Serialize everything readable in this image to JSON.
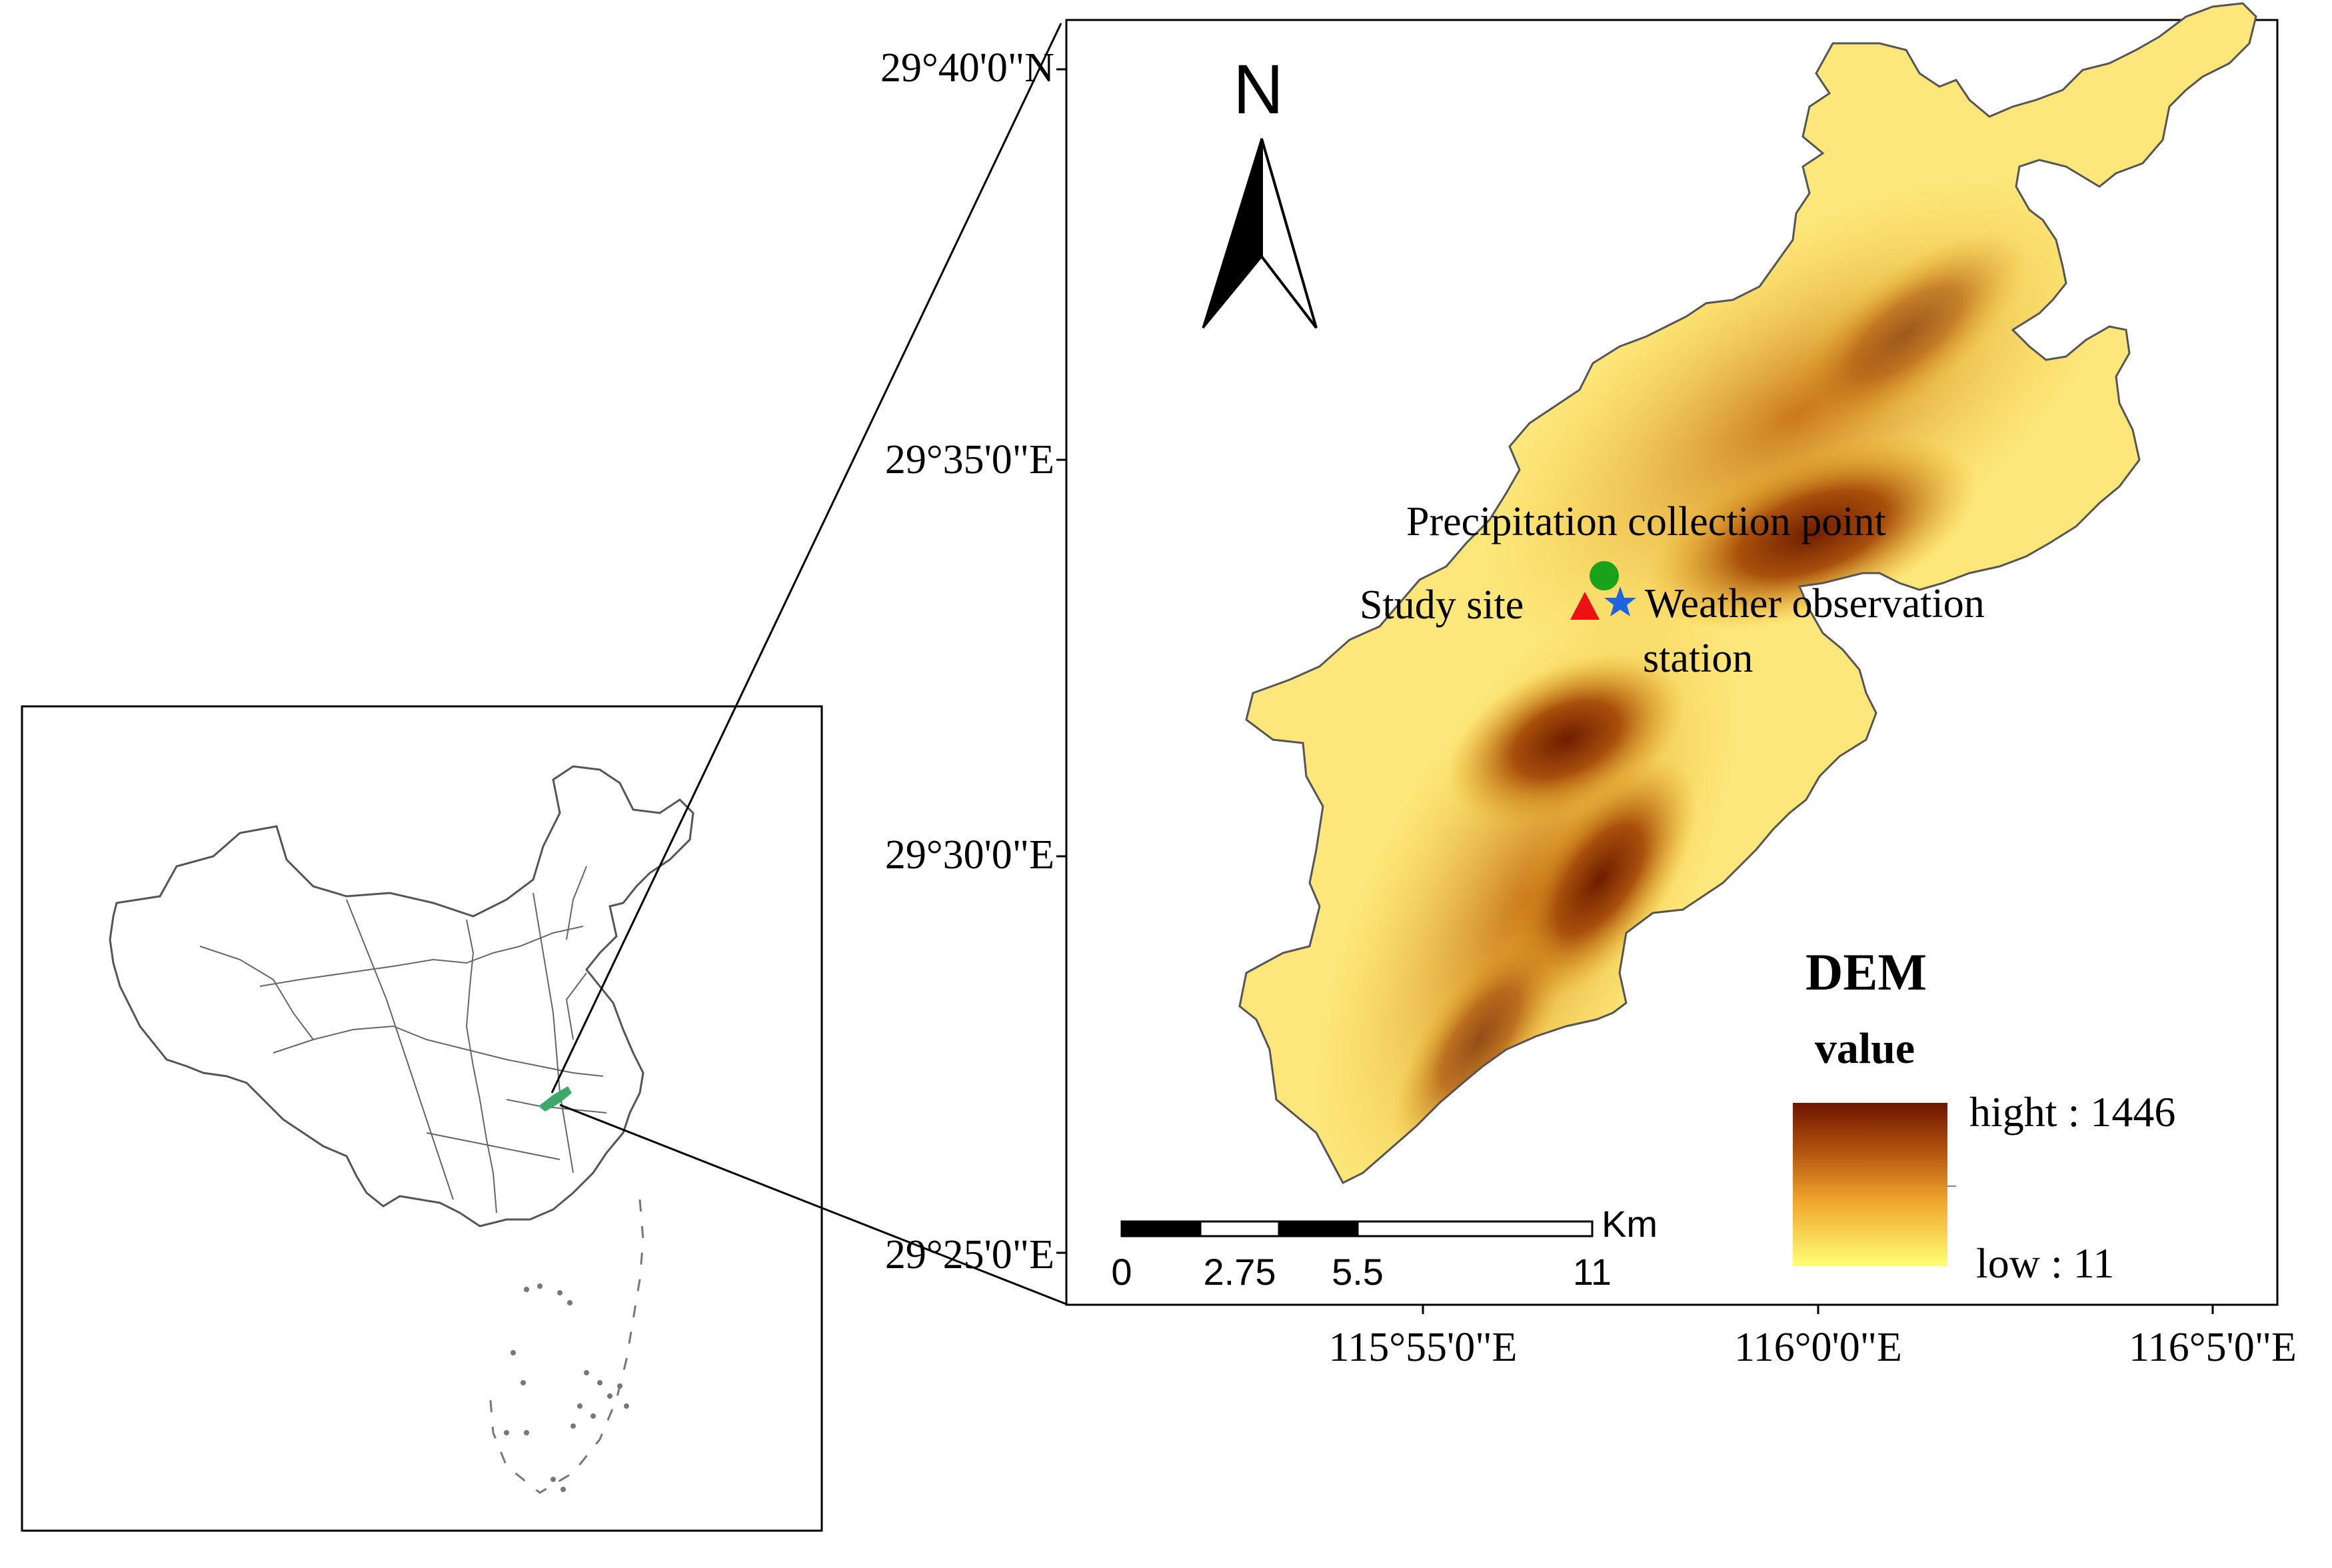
{
  "dem_map": {
    "north_label": "N",
    "lat_labels": [
      "29°40'0\"N",
      "29°35'0\"E",
      "29°30'0\"E",
      "29°25'0\"E"
    ],
    "lon_labels": [
      "115°55'0\"E",
      "116°0'0\"E",
      "116°5'0\"E"
    ],
    "points": {
      "precipitation": "Precipitation collection point",
      "study_site": "Study site",
      "weather_line1": "Weather observation",
      "weather_line2": "station"
    },
    "point_colors": {
      "precipitation": "#1aa31a",
      "study_site": "#ee1111",
      "weather": "#1f63e0"
    },
    "legend": {
      "title": "DEM",
      "subtitle": "value",
      "high": "hight : 1446",
      "low": "low : 11",
      "high_color": "#6e1500",
      "low_color": "#ffff75"
    },
    "scale_bar": {
      "ticks": [
        "0",
        "2.75",
        "5.5",
        "11"
      ],
      "unit": "Km"
    }
  },
  "inset_map": {
    "highlight_color": "#3ea86a"
  }
}
